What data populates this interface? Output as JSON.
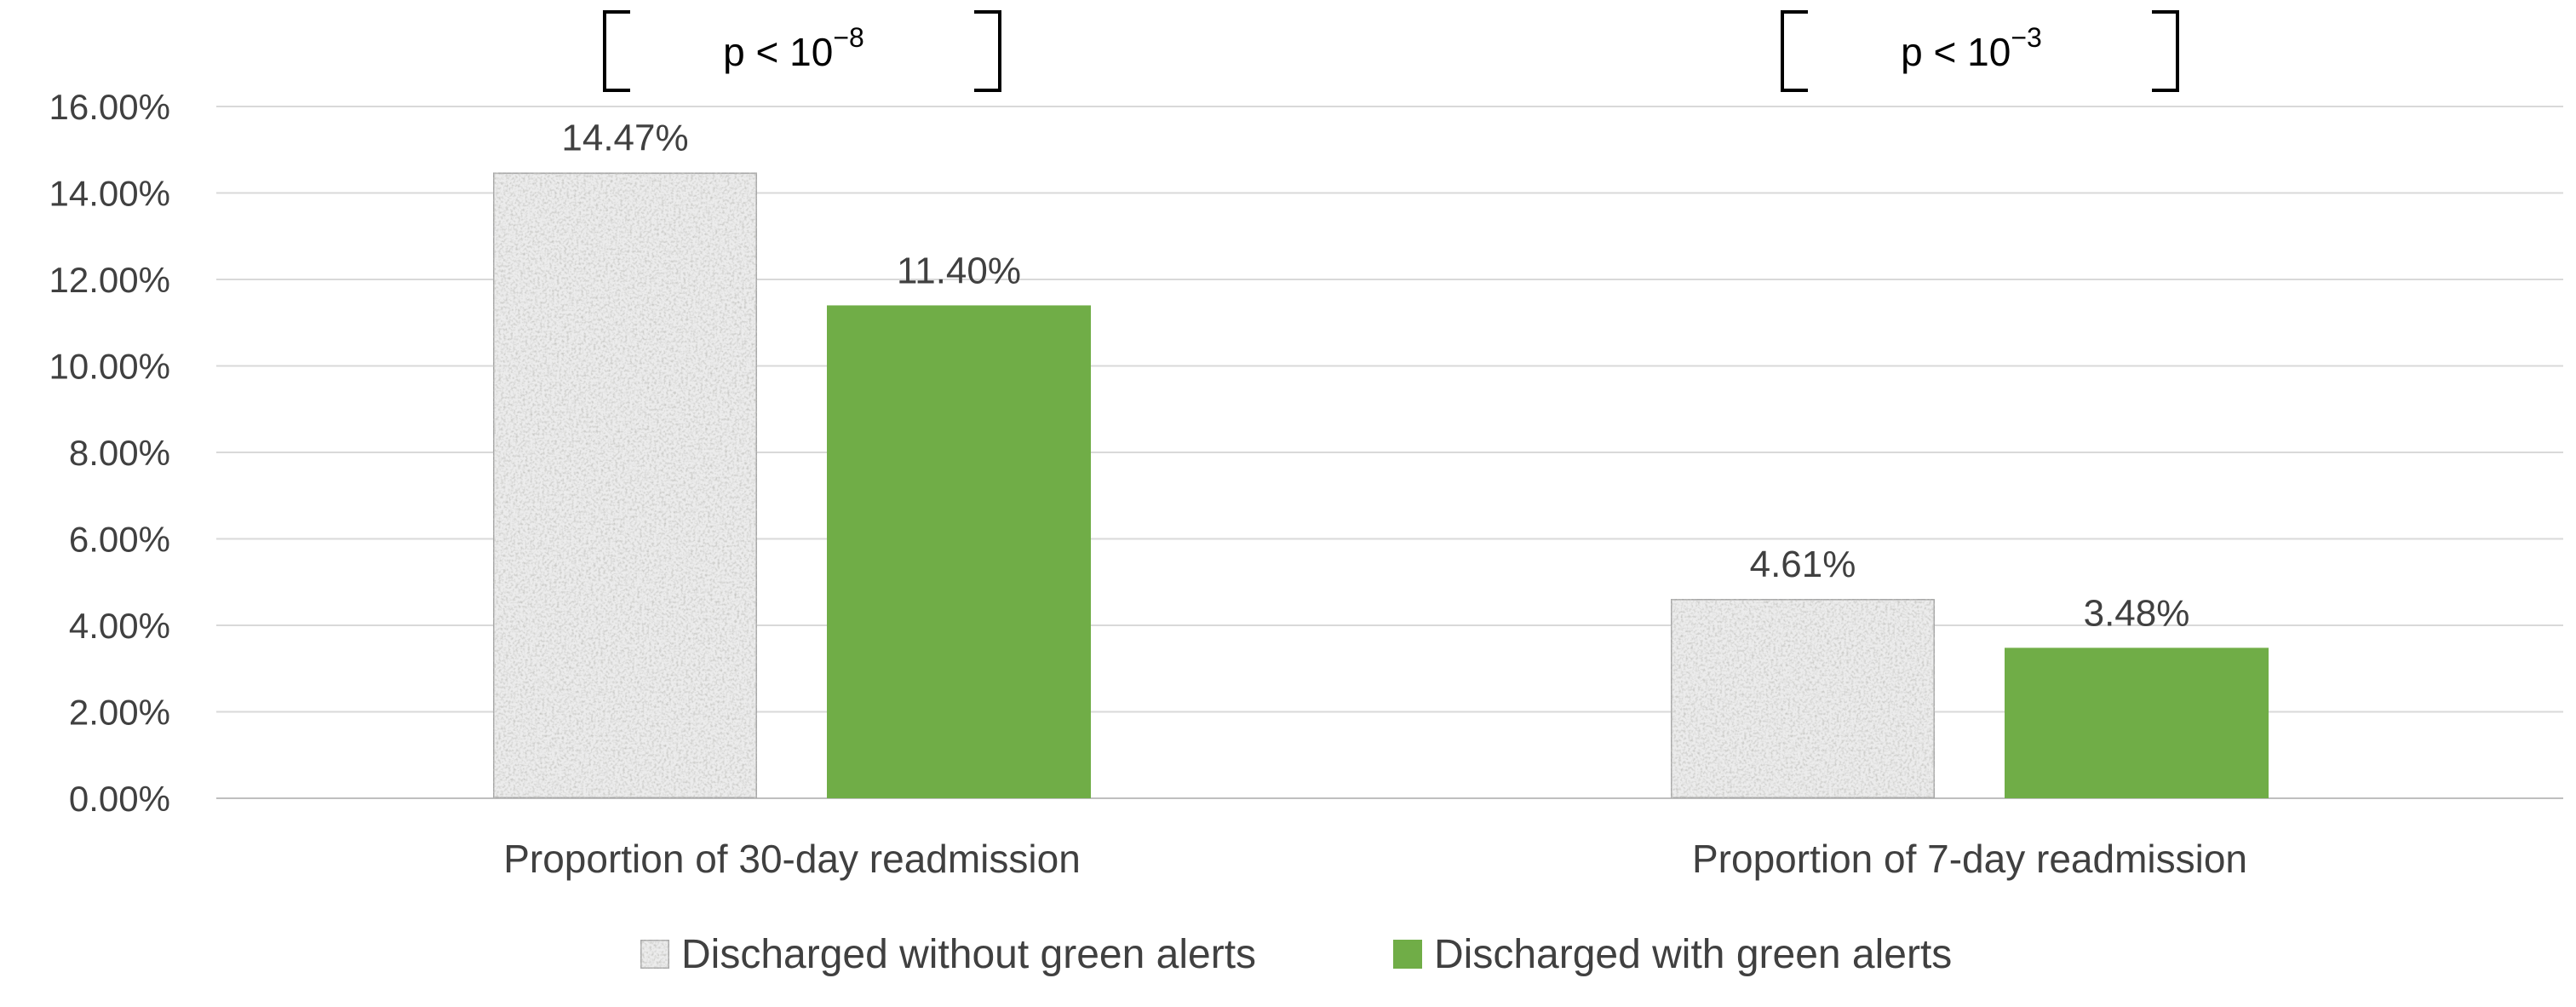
{
  "chart_data": {
    "type": "bar",
    "categories": [
      "Proportion of 30-day readmission",
      "Proportion of 7-day readmission"
    ],
    "series": [
      {
        "name": "Discharged without green alerts",
        "values": [
          14.47,
          4.61
        ],
        "color": "#ececec",
        "pattern": "speckled"
      },
      {
        "name": "Discharged with green alerts",
        "values": [
          11.4,
          3.48
        ],
        "color": "#70ad47"
      }
    ],
    "data_labels": [
      [
        "14.47%",
        "4.61%"
      ],
      [
        "11.40%",
        "3.48%"
      ]
    ],
    "ylim": [
      0,
      16
    ],
    "yticks": [
      {
        "value": 0,
        "label": "0.00%"
      },
      {
        "value": 2,
        "label": "2.00%"
      },
      {
        "value": 4,
        "label": "4.00%"
      },
      {
        "value": 6,
        "label": "6.00%"
      },
      {
        "value": 8,
        "label": "8.00%"
      },
      {
        "value": 10,
        "label": "10.00%"
      },
      {
        "value": 12,
        "label": "12.00%"
      },
      {
        "value": 14,
        "label": "14.00%"
      },
      {
        "value": 16,
        "label": "16.00%"
      }
    ],
    "annotations": [
      {
        "category_index": 0,
        "text": "p < 10",
        "exponent": "−8"
      },
      {
        "category_index": 1,
        "text": "p < 10",
        "exponent": "−3"
      }
    ],
    "grid": true,
    "legend_position": "bottom",
    "title": "",
    "xlabel": "",
    "ylabel": ""
  }
}
